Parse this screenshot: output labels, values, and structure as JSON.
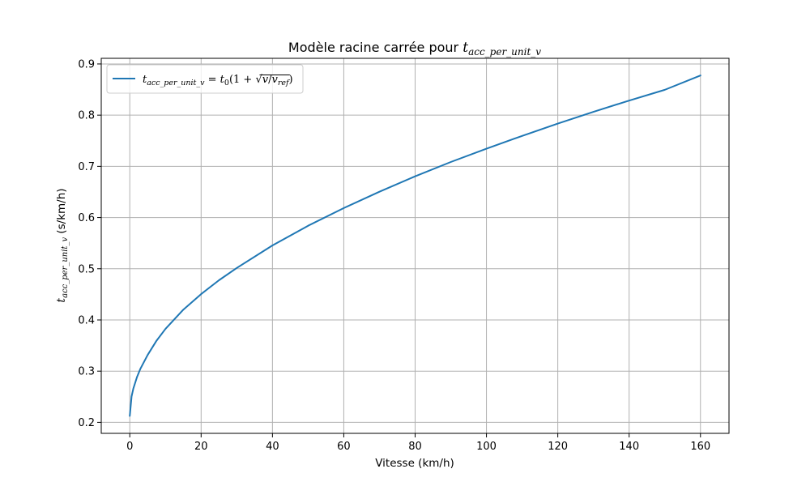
{
  "chart_data": {
    "type": "line",
    "title": {
      "prefix": "Modèle racine carrée pour ",
      "math_base": "t",
      "math_sub": "acc_per_unit_v"
    },
    "xlabel": "Vitesse (km/h)",
    "ylabel": {
      "math_base": "t",
      "math_sub": "acc_per_unit_v",
      "suffix": " (s/km/h)"
    },
    "xlim": [
      -8,
      168
    ],
    "ylim": [
      0.1785,
      0.911
    ],
    "x_ticks": [
      0,
      20,
      40,
      60,
      80,
      100,
      120,
      140,
      160
    ],
    "y_ticks": [
      0.2,
      0.3,
      0.4,
      0.5,
      0.6,
      0.7,
      0.8,
      0.9
    ],
    "x_tick_labels": [
      "0",
      "20",
      "40",
      "60",
      "80",
      "100",
      "120",
      "140",
      "160"
    ],
    "y_tick_labels": [
      "0.2",
      "0.3",
      "0.4",
      "0.5",
      "0.6",
      "0.7",
      "0.8",
      "0.9"
    ],
    "grid": true,
    "legend_placement": "top-left",
    "series": [
      {
        "name": "t_acc_per_unit_v = t0(1 + sqrt(v/v_ref))",
        "legend": {
          "lhs_base": "t",
          "lhs_sub": "acc_per_unit_v",
          "eq": " = ",
          "t0_base": "t",
          "t0_sub": "0",
          "open": "(1 + ",
          "radicand_num": "v",
          "slash": "/",
          "radicand_den_base": "v",
          "radicand_den_sub": "ref",
          "close": ")"
        },
        "color": "#1f77b4",
        "x": [
          0,
          0.5,
          1,
          2,
          3,
          5,
          7.5,
          10,
          15,
          20,
          25,
          30,
          40,
          50,
          60,
          70,
          80,
          90,
          100,
          110,
          120,
          130,
          140,
          150,
          160
        ],
        "y": [
          0.2125,
          0.2505,
          0.266,
          0.288,
          0.305,
          0.3315,
          0.3595,
          0.3825,
          0.42,
          0.4505,
          0.4775,
          0.5015,
          0.5455,
          0.584,
          0.6185,
          0.6505,
          0.6805,
          0.7085,
          0.7345,
          0.7595,
          0.7835,
          0.8065,
          0.8285,
          0.8495,
          0.8775
        ]
      }
    ]
  }
}
